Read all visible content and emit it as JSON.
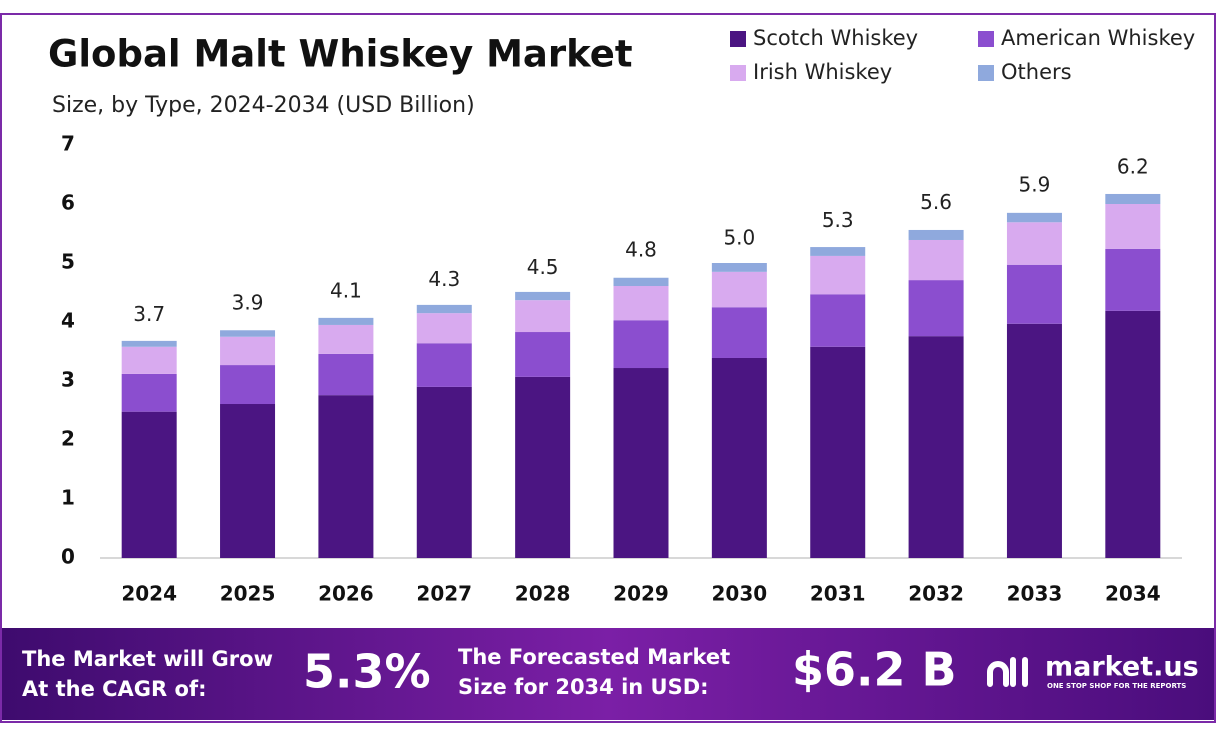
{
  "chart_data": {
    "type": "stacked-bar",
    "title": "Global Malt Whiskey Market",
    "subtitle": "Size, by Type, 2024-2034 (USD Billion)",
    "categories": [
      "2024",
      "2025",
      "2026",
      "2027",
      "2028",
      "2029",
      "2030",
      "2031",
      "2032",
      "2033",
      "2034"
    ],
    "series": [
      {
        "name": "Scotch Whiskey",
        "color": "#4b1582",
        "values": [
          2.48,
          2.61,
          2.76,
          2.9,
          3.07,
          3.22,
          3.39,
          3.58,
          3.76,
          3.97,
          4.19
        ]
      },
      {
        "name": "American Whiskey",
        "color": "#8b4ecf",
        "values": [
          0.64,
          0.66,
          0.7,
          0.74,
          0.76,
          0.81,
          0.86,
          0.89,
          0.95,
          1.0,
          1.05
        ]
      },
      {
        "name": "Irish Whiskey",
        "color": "#d8aaef",
        "values": [
          0.46,
          0.48,
          0.49,
          0.51,
          0.54,
          0.58,
          0.6,
          0.65,
          0.68,
          0.72,
          0.76
        ]
      },
      {
        "name": "Others",
        "color": "#8fa9dd",
        "values": [
          0.1,
          0.11,
          0.12,
          0.14,
          0.14,
          0.14,
          0.15,
          0.15,
          0.17,
          0.16,
          0.17
        ]
      }
    ],
    "totals": [
      3.7,
      3.9,
      4.1,
      4.3,
      4.5,
      4.8,
      5.0,
      5.3,
      5.6,
      5.9,
      6.2
    ],
    "total_labels": [
      "3.7",
      "3.9",
      "4.1",
      "4.3",
      "4.5",
      "4.8",
      "5.0",
      "5.3",
      "5.6",
      "5.9",
      "6.2"
    ],
    "ylim": [
      0,
      7
    ],
    "yticks": [
      0,
      1,
      2,
      3,
      4,
      5,
      6,
      7
    ],
    "grid": false
  },
  "footer": {
    "cagr_text": [
      "The Market will Grow",
      "At the CAGR of:"
    ],
    "cagr_value": "5.3%",
    "forecast_text": [
      "The Forecasted Market",
      "Size for 2034 in USD:"
    ],
    "forecast_value": "$6.2 B",
    "brand": "market.us",
    "tagline": "ONE STOP SHOP FOR THE REPORTS"
  }
}
